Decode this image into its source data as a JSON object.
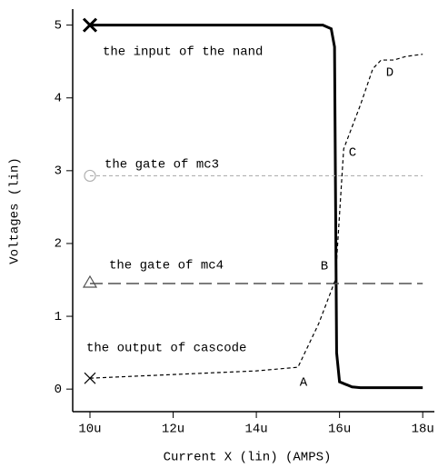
{
  "chart_data": {
    "type": "line",
    "xlabel": "Current X (lin) (AMPS)",
    "ylabel": "Voltages (lin)",
    "xlim": [
      9.585,
      18.28
    ],
    "ylim": [
      -0.31,
      5.22
    ],
    "xticks": [
      {
        "value": 10,
        "label": "10u"
      },
      {
        "value": 12,
        "label": "12u"
      },
      {
        "value": 14,
        "label": "14u"
      },
      {
        "value": 16,
        "label": "16u"
      },
      {
        "value": 18,
        "label": "18u"
      }
    ],
    "yticks": [
      0,
      1,
      2,
      3,
      4,
      5
    ],
    "series": [
      {
        "name": "the input of the nand",
        "color": "#000000",
        "style": "solid",
        "marker": "x",
        "x": [
          10,
          15.6,
          15.8,
          15.88,
          15.9,
          15.93,
          16,
          16.3,
          16.5,
          18
        ],
        "values": [
          5,
          5,
          4.95,
          4.7,
          3,
          0.5,
          0.1,
          0.03,
          0.02,
          0.02
        ]
      },
      {
        "name": "the gate of mc3",
        "color": "#b0b0b0",
        "style": "dashed",
        "marker": "circle",
        "x": [
          10,
          18
        ],
        "values": [
          2.93,
          2.93
        ]
      },
      {
        "name": "the gate of mc4",
        "color": "#505050",
        "style": "long-dashed",
        "marker": "triangle",
        "x": [
          10,
          18
        ],
        "values": [
          1.45,
          1.45
        ]
      },
      {
        "name": "the output of cascode",
        "color": "#000000",
        "style": "dashed",
        "marker": "x",
        "x": [
          10,
          12,
          14,
          15,
          15.5,
          15.9,
          16,
          16.1,
          16.5,
          16.8,
          17,
          17.3,
          17.6,
          18
        ],
        "values": [
          0.15,
          0.2,
          0.25,
          0.3,
          0.9,
          1.5,
          2.4,
          3.3,
          3.9,
          4.4,
          4.52,
          4.52,
          4.57,
          4.6
        ]
      }
    ],
    "annotations": [
      "A",
      "B",
      "C",
      "D"
    ]
  }
}
